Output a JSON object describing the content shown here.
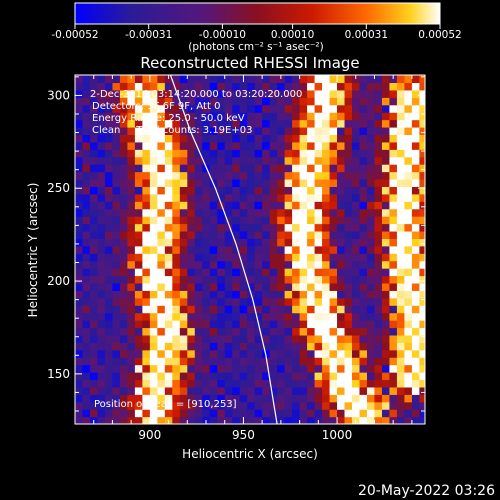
{
  "chart_data": {
    "type": "heatmap",
    "title": "Reconstructed RHESSI Image",
    "xlabel": "Heliocentric X (arcsec)",
    "ylabel": "Heliocentric Y (arcsec)",
    "xlim": [
      860,
      1047
    ],
    "ylim": [
      123,
      311
    ],
    "x_ticks": [
      900,
      950,
      1000
    ],
    "y_ticks": [
      150,
      200,
      250,
      300
    ],
    "colorbar": {
      "range": [
        -0.00052,
        0.00052
      ],
      "tick_values": [
        -0.00052,
        -0.00031,
        -0.0001,
        0.0001,
        0.00031,
        0.00052
      ],
      "tick_labels": [
        "-0.00052",
        "-0.00031",
        "-0.00010",
        "0.00010",
        "0.00031",
        "0.00052"
      ],
      "unit_label": "(photons cm⁻² s⁻¹ asec⁻²)"
    },
    "annotations": [
      "2-Dec-2014 03:14:20.000 to 03:20:20.000",
      "Detectors: 3F 6F 9F, Att 0",
      "Energy Range: 25.0 - 50.0 keV",
      "Clean     Total counts: 3.19E+03"
    ],
    "peak_label": "Position of Peak = [910,253]",
    "peak": [
      910,
      253
    ],
    "limb_curve": [
      [
        911,
        311
      ],
      [
        922,
        280
      ],
      [
        935,
        250
      ],
      [
        946,
        220
      ],
      [
        955,
        190
      ],
      [
        962,
        160
      ],
      [
        966,
        135
      ],
      [
        968,
        123
      ]
    ],
    "bright_ridges": [
      {
        "name": "left",
        "points": [
          [
            895,
            300
          ],
          [
            903,
            275
          ],
          [
            908,
            253
          ],
          [
            905,
            230
          ],
          [
            902,
            210
          ],
          [
            906,
            190
          ],
          [
            910,
            170
          ],
          [
            905,
            150
          ],
          [
            903,
            130
          ]
        ]
      },
      {
        "name": "right",
        "points": [
          [
            995,
            305
          ],
          [
            990,
            280
          ],
          [
            985,
            255
          ],
          [
            982,
            230
          ],
          [
            985,
            205
          ],
          [
            990,
            185
          ],
          [
            995,
            170
          ],
          [
            1000,
            160
          ],
          [
            1005,
            140
          ],
          [
            1015,
            130
          ]
        ]
      },
      {
        "name": "far-right",
        "points": [
          [
            1040,
            300
          ],
          [
            1038,
            270
          ],
          [
            1035,
            240
          ],
          [
            1038,
            210
          ],
          [
            1042,
            180
          ],
          [
            1040,
            150
          ]
        ]
      }
    ]
  },
  "timestamp": "20-May-2022 03:26",
  "colors": {
    "colormap": [
      "#0000ff",
      "#2a1b99",
      "#55177a",
      "#8a1020",
      "#cc1a00",
      "#ff6a00",
      "#ffd21e",
      "#ffffff"
    ],
    "limb": "#ffffff",
    "background": "#000000"
  }
}
